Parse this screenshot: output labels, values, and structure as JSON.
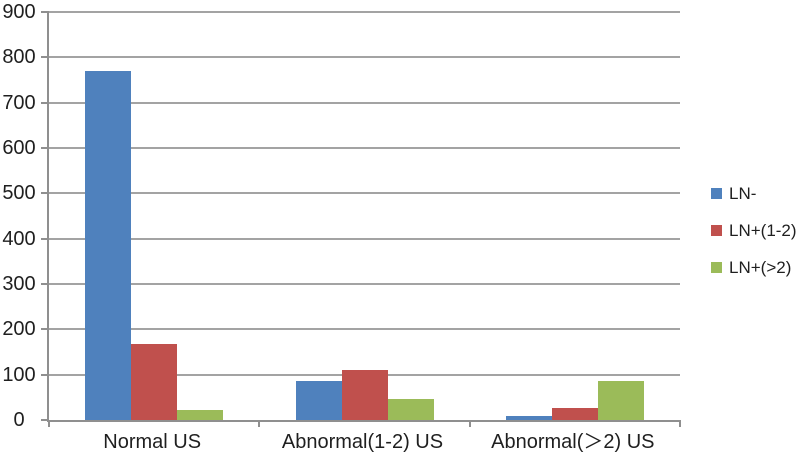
{
  "chart_data": {
    "type": "bar",
    "title": "",
    "xlabel": "",
    "ylabel": "",
    "categories": [
      "Normal US",
      "Abnormal(1-2) US",
      "Abnormal(＞2) US"
    ],
    "series": [
      {
        "name": "LN-",
        "color": "#4f81bd",
        "values": [
          770,
          86,
          8
        ]
      },
      {
        "name": "LN+(1-2)",
        "color": "#c0504d",
        "values": [
          167,
          110,
          27
        ]
      },
      {
        "name": "LN+(>2)",
        "color": "#9bbb59",
        "values": [
          22,
          46,
          85
        ]
      }
    ],
    "ylim": [
      0,
      900
    ],
    "yticks": [
      0,
      100,
      200,
      300,
      400,
      500,
      600,
      700,
      800,
      900
    ],
    "grid": true,
    "legend_position": "right-center"
  },
  "styles": {
    "axis_color": "#8f8f8f",
    "grid_color": "#a3a3a3",
    "text_color": "#1f1f1f",
    "background": "#ffffff"
  }
}
